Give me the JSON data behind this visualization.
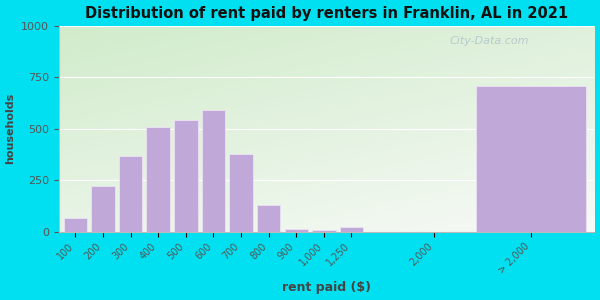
{
  "title": "Distribution of rent paid by renters in Franklin, AL in 2021",
  "xlabel": "rent paid ($)",
  "ylabel": "households",
  "bar_color": "#c0a8d8",
  "bar_edge_color": "#e8e0f0",
  "background_outer": "#00e0f0",
  "background_inner_gradient_bottom": "#c8e8c0",
  "background_inner_gradient_top": "#f0f4f8",
  "categories": [
    "100",
    "200",
    "300",
    "400",
    "500",
    "600",
    "700",
    "800",
    "900",
    "1,000",
    "1,250",
    "2,000",
    "> 2,000"
  ],
  "values": [
    65,
    220,
    365,
    510,
    540,
    590,
    375,
    130,
    10,
    5,
    20,
    0,
    710
  ],
  "ylim": [
    0,
    1000
  ],
  "yticks": [
    0,
    250,
    500,
    750,
    1000
  ],
  "watermark": "City-Data.com"
}
